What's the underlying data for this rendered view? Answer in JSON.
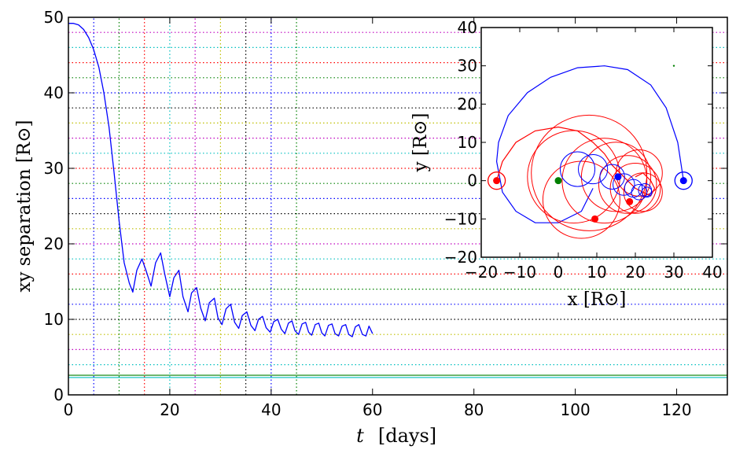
{
  "chart_data": [
    {
      "type": "line",
      "xlabel": "t  [days]",
      "ylabel": "xy  separation  [R⊙]",
      "xlim": [
        0,
        130
      ],
      "ylim": [
        0,
        50
      ],
      "xticks": [
        "0",
        "20",
        "40",
        "60",
        "80",
        "100",
        "120"
      ],
      "yticks": [
        "0",
        "10",
        "20",
        "30",
        "40",
        "50"
      ],
      "grid": "dotted colored reference lines",
      "vertical_dotted_lines": [
        {
          "x": 5,
          "color": "#0000ff"
        },
        {
          "x": 10,
          "color": "#008000"
        },
        {
          "x": 15,
          "color": "#ff0000"
        },
        {
          "x": 20,
          "color": "#00bfbf"
        },
        {
          "x": 25,
          "color": "#bf00bf"
        },
        {
          "x": 30,
          "color": "#bfbf00"
        },
        {
          "x": 35,
          "color": "#000000"
        },
        {
          "x": 40,
          "color": "#0000ff"
        },
        {
          "x": 45,
          "color": "#008000"
        }
      ],
      "horizontal_dotted_lines": [
        {
          "y": 4,
          "color": "#00bfbf"
        },
        {
          "y": 6,
          "color": "#bf00bf"
        },
        {
          "y": 8,
          "color": "#bfbf00"
        },
        {
          "y": 10,
          "color": "#000000"
        },
        {
          "y": 12,
          "color": "#0000ff"
        },
        {
          "y": 14,
          "color": "#008000"
        },
        {
          "y": 16,
          "color": "#ff0000"
        },
        {
          "y": 18,
          "color": "#00bfbf"
        },
        {
          "y": 20,
          "color": "#bf00bf"
        },
        {
          "y": 22,
          "color": "#bfbf00"
        },
        {
          "y": 24,
          "color": "#000000"
        },
        {
          "y": 26,
          "color": "#0000ff"
        },
        {
          "y": 28,
          "color": "#008000"
        },
        {
          "y": 30,
          "color": "#ff0000"
        },
        {
          "y": 32,
          "color": "#00bfbf"
        },
        {
          "y": 34,
          "color": "#bf00bf"
        },
        {
          "y": 36,
          "color": "#bfbf00"
        },
        {
          "y": 38,
          "color": "#000000"
        },
        {
          "y": 40,
          "color": "#0000ff"
        },
        {
          "y": 42,
          "color": "#008000"
        },
        {
          "y": 44,
          "color": "#ff0000"
        },
        {
          "y": 46,
          "color": "#00bfbf"
        },
        {
          "y": 48,
          "color": "#bf00bf"
        }
      ],
      "horizontal_solid_lines": [
        {
          "y": 2.3,
          "color": "#00bfbf"
        },
        {
          "y": 2.6,
          "color": "#008000"
        }
      ],
      "series": [
        {
          "color": "#0000ff",
          "x": [
            0,
            1,
            2,
            3,
            4,
            5,
            6,
            7,
            8,
            9,
            10,
            11,
            12,
            12.7,
            13.5,
            14.5,
            15.3,
            16.3,
            17.2,
            18.2,
            19,
            20,
            20.8,
            21.8,
            22.6,
            23.6,
            24.3,
            25.3,
            26.1,
            27,
            27.8,
            28.8,
            29.5,
            30.3,
            31.1,
            32,
            32.8,
            33.6,
            34.3,
            35.2,
            36,
            36.8,
            37.5,
            38.3,
            39,
            39.8,
            40.5,
            41.3,
            42,
            42.7,
            43.4,
            44.1,
            44.7,
            45.4,
            46.1,
            46.8,
            47.4,
            48,
            48.7,
            49.4,
            50,
            50.6,
            51.3,
            52,
            52.6,
            53.3,
            54,
            54.7,
            55.3,
            56,
            56.6,
            57.3,
            58,
            58.7,
            59.3,
            60
          ],
          "y": [
            49.2,
            49.2,
            49,
            48.4,
            47.3,
            45.7,
            43.4,
            40,
            35.5,
            29.5,
            23,
            17.5,
            14.8,
            13.6,
            16.5,
            18,
            16.5,
            14.4,
            17.5,
            18.8,
            16,
            13,
            15.5,
            16.5,
            13,
            11,
            13.5,
            14.2,
            11.5,
            9.8,
            12.2,
            12.8,
            10.2,
            9.3,
            11.4,
            12,
            9.6,
            8.8,
            10.5,
            11,
            9.2,
            8.5,
            10,
            10.4,
            8.9,
            8.3,
            9.7,
            10,
            8.7,
            8.1,
            9.5,
            9.8,
            8.5,
            8,
            9.4,
            9.6,
            8.3,
            7.9,
            9.3,
            9.5,
            8.2,
            7.8,
            9.2,
            9.4,
            8.1,
            7.8,
            9.1,
            9.3,
            8,
            7.7,
            9,
            9.3,
            8,
            7.8,
            9.1,
            8.1
          ]
        }
      ]
    },
    {
      "type": "line",
      "title": "",
      "xlabel": "x [R⊙]",
      "ylabel": "y [R⊙]",
      "xlim": [
        -20,
        40
      ],
      "ylim": [
        -20,
        40
      ],
      "xticks": [
        "−20",
        "−10",
        "0",
        "10",
        "20",
        "30",
        "40"
      ],
      "yticks": [
        "−20",
        "−10",
        "0",
        "10",
        "20",
        "30",
        "40"
      ],
      "markers": [
        {
          "x": -16,
          "y": 0,
          "color": "#ff0000",
          "ring": true
        },
        {
          "x": 32.5,
          "y": 0,
          "color": "#0000ff",
          "ring": true
        },
        {
          "x": 0,
          "y": 0,
          "color": "#008000",
          "ring": false
        },
        {
          "x": 9.5,
          "y": -10,
          "color": "#ff0000",
          "ring": false
        },
        {
          "x": 15.5,
          "y": 1,
          "color": "#0000ff",
          "ring": false
        },
        {
          "x": 18.5,
          "y": -5.5,
          "color": "#ff0000",
          "ring": false
        },
        {
          "x": 30,
          "y": 30,
          "color": "#008000",
          "ring": false
        }
      ],
      "series": [
        {
          "color": "#0000ff",
          "x": [
            32.5,
            31,
            28,
            24,
            18,
            12,
            5,
            -2,
            -8,
            -13,
            -15.5,
            -16,
            -14.5,
            -11,
            -6,
            0,
            6,
            9
          ],
          "y": [
            0,
            10,
            19,
            25,
            29,
            30,
            29.5,
            27,
            23,
            17,
            10,
            5,
            -3,
            -8,
            -11,
            -11,
            -8,
            -2
          ]
        },
        {
          "color": "#ff0000",
          "x": [
            -16,
            -14.5,
            -11,
            -6,
            0,
            5,
            9,
            12,
            14,
            16,
            18,
            20,
            22,
            24,
            25,
            24,
            22,
            20
          ],
          "y": [
            0,
            5,
            10,
            13,
            14,
            13,
            10,
            7,
            4,
            2,
            0,
            -2,
            -3,
            -4,
            -2,
            0,
            2,
            1
          ]
        }
      ]
    }
  ]
}
